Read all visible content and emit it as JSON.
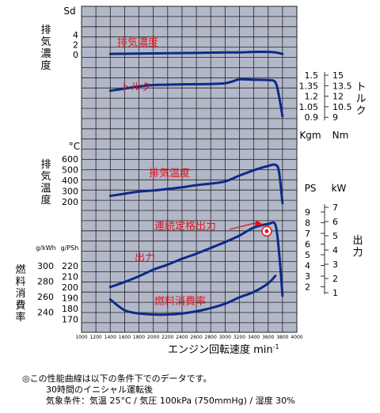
{
  "chart_data": {
    "type": "line",
    "x_axis": {
      "label": "エンジン回転速度 min",
      "label_superscript": "-1",
      "min": 1000,
      "max": 4000,
      "step": 200,
      "ticks": [
        "1000",
        "1200",
        "1400",
        "1600",
        "1800",
        "2000",
        "2200",
        "2400",
        "2600",
        "2800",
        "3000",
        "3200",
        "3400",
        "3600",
        "3800",
        "4000"
      ]
    },
    "axes": {
      "smoke": {
        "unit": "Sd",
        "label": [
          "排",
          "気",
          "濃",
          "度"
        ],
        "ticks": [
          "4",
          "2",
          "0"
        ]
      },
      "exhaust_temp": {
        "unit": "°C",
        "label": [
          "排",
          "気",
          "温",
          "度"
        ],
        "ticks": [
          "600",
          "500",
          "400",
          "300",
          "200"
        ]
      },
      "fuel_consumption": {
        "unit_kwh": "g/kWh",
        "unit_psh": "g/PSh",
        "label": [
          "燃",
          "料",
          "消",
          "費",
          "率"
        ],
        "ticks_kwh": [
          "300",
          "280",
          "260",
          "240"
        ],
        "ticks_psh": [
          "220",
          "210",
          "200",
          "190",
          "180",
          "170"
        ]
      },
      "torque": {
        "unit_kgm": "Kgm",
        "unit_nm": "Nm",
        "label": [
          "ト",
          "ル",
          "ク"
        ],
        "ticks_kgm": [
          "1.5",
          "1.35",
          "1.2",
          "1.05",
          "0.9"
        ],
        "ticks_nm": [
          "15",
          "13.5",
          "12",
          "10.5",
          "9"
        ]
      },
      "output": {
        "unit_ps": "PS",
        "unit_kw": "kW",
        "label": [
          "出",
          "力"
        ],
        "ticks_ps": [
          "9",
          "8",
          "7",
          "6",
          "5",
          "4",
          "3",
          "2"
        ],
        "ticks_kw": [
          "7",
          "6",
          "5",
          "4",
          "3",
          "2",
          "1"
        ]
      }
    },
    "series": [
      {
        "name": "排気濃度",
        "unit": "Sd",
        "x": [
          1400,
          2000,
          2600,
          3000,
          3200,
          3400,
          3600,
          3700,
          3800
        ],
        "y": [
          0.3,
          0.4,
          0.5,
          0.6,
          0.6,
          0.7,
          0.7,
          0.6,
          0.3
        ]
      },
      {
        "name": "トルク",
        "unit": "Nm",
        "x": [
          1400,
          1600,
          1800,
          2000,
          2200,
          2400,
          2600,
          2800,
          3000,
          3100,
          3200,
          3400,
          3600,
          3700,
          3750,
          3800
        ],
        "y": [
          12.7,
          13.0,
          13.3,
          13.5,
          13.55,
          13.6,
          13.62,
          13.65,
          13.75,
          14.0,
          14.3,
          14.25,
          14.2,
          13.9,
          12.0,
          9.1
        ]
      },
      {
        "name": "排気温度",
        "unit": "°C",
        "x": [
          1400,
          1600,
          1800,
          2000,
          2200,
          2400,
          2600,
          2800,
          3000,
          3200,
          3400,
          3600,
          3700,
          3750,
          3800
        ],
        "y": [
          270,
          290,
          310,
          320,
          335,
          350,
          370,
          385,
          405,
          460,
          510,
          550,
          560,
          500,
          200
        ]
      },
      {
        "name": "出力",
        "unit": "kW",
        "x": [
          1400,
          1600,
          1800,
          2000,
          2200,
          2400,
          2600,
          2800,
          3000,
          3200,
          3400,
          3600,
          3700,
          3750,
          3800
        ],
        "y": [
          1.5,
          1.85,
          2.25,
          2.7,
          3.05,
          3.45,
          3.8,
          4.2,
          4.6,
          5.05,
          5.6,
          5.85,
          5.8,
          4.0,
          0.9
        ]
      },
      {
        "name": "燃料消費率",
        "unit": "g/PSh",
        "x": [
          1400,
          1600,
          1800,
          2000,
          2200,
          2400,
          2600,
          2800,
          3000,
          3200,
          3400,
          3600,
          3700
        ],
        "y": [
          188,
          178,
          175,
          174,
          174,
          175,
          177,
          180,
          184,
          190,
          195,
          203,
          210
        ]
      }
    ],
    "annotations": [
      {
        "text": "連続定格出力",
        "x": 3500,
        "y_kw": 5.8
      }
    ]
  },
  "notes": [
    "◎この性能曲線は以下の条件下でのデータです。",
    "30時間のイニシャル運転後",
    "気象条件：気温 25°C / 気圧 100kPa (750mmHg) / 湿度 30%"
  ]
}
